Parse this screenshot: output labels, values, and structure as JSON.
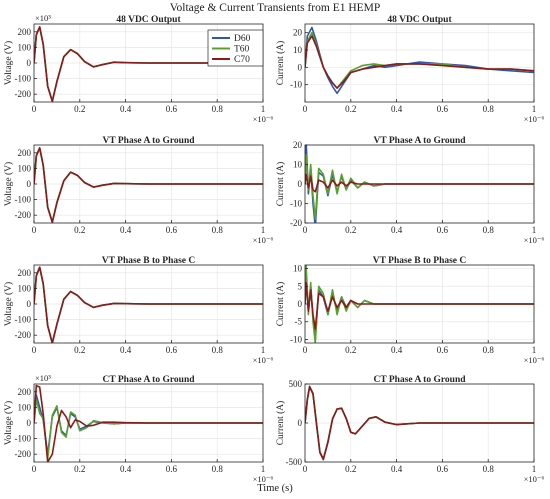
{
  "title": "Voltage & Current Transients from E1 HEMP",
  "xlabel": "Time (s)",
  "x_exponent_label": "×10⁻⁶",
  "y_exponent_label": "×10³",
  "legend": {
    "position": "top-right of 48 VDC Output voltage panel",
    "entries": [
      {
        "name": "D60",
        "color": "#2f56b0"
      },
      {
        "name": "T60",
        "color": "#5aa02c"
      },
      {
        "name": "C70",
        "color": "#8b1a1a"
      }
    ]
  },
  "chart_data": [
    {
      "type": "line",
      "title": "48 VDC Output",
      "ylabel": "Voltage (V)",
      "xlim": [
        0,
        1
      ],
      "ylim": [
        -250,
        250
      ],
      "yticks": [
        -200,
        -100,
        0,
        100,
        200
      ],
      "xticks": [
        0,
        0.2,
        0.4,
        0.6,
        0.8,
        1
      ],
      "x": [
        0,
        0.01,
        0.025,
        0.04,
        0.06,
        0.08,
        0.1,
        0.13,
        0.16,
        0.19,
        0.22,
        0.26,
        0.3,
        0.35,
        0.4,
        0.5,
        0.6,
        0.8,
        1.0
      ],
      "series": [
        {
          "name": "D60",
          "values": [
            0,
            180,
            230,
            120,
            -150,
            -245,
            -120,
            40,
            85,
            60,
            10,
            -25,
            -10,
            5,
            2,
            0,
            0,
            0,
            0
          ]
        },
        {
          "name": "T60",
          "values": [
            0,
            178,
            228,
            118,
            -148,
            -243,
            -118,
            42,
            85,
            58,
            9,
            -24,
            -9,
            5,
            2,
            0,
            0,
            0,
            0
          ]
        },
        {
          "name": "C70",
          "values": [
            0,
            182,
            232,
            120,
            -150,
            -246,
            -120,
            40,
            86,
            60,
            10,
            -25,
            -10,
            5,
            2,
            0,
            0,
            0,
            0
          ]
        }
      ]
    },
    {
      "type": "line",
      "title": "48 VDC Output",
      "ylabel": "Current (A)",
      "xlim": [
        0,
        1
      ],
      "ylim": [
        -20,
        25
      ],
      "yticks": [
        -10,
        0,
        10,
        20
      ],
      "xticks": [
        0,
        0.2,
        0.4,
        0.6,
        0.8,
        1
      ],
      "x": [
        0,
        0.01,
        0.03,
        0.05,
        0.08,
        0.1,
        0.12,
        0.14,
        0.17,
        0.2,
        0.25,
        0.3,
        0.35,
        0.4,
        0.5,
        0.6,
        0.7,
        0.8,
        0.9,
        1.0
      ],
      "series": [
        {
          "name": "D60",
          "values": [
            0,
            18,
            23,
            15,
            0,
            -6,
            -11,
            -15,
            -9,
            -3,
            -1,
            1,
            0,
            1,
            3,
            2,
            1,
            -1,
            -2,
            -3
          ]
        },
        {
          "name": "T60",
          "values": [
            0,
            15,
            20,
            13,
            0,
            -5,
            -9,
            -12,
            -7,
            -2,
            1,
            2,
            1,
            2,
            2,
            2,
            0,
            -1,
            -1,
            -2
          ]
        },
        {
          "name": "C70",
          "values": [
            0,
            14,
            18,
            12,
            0,
            -5,
            -9,
            -12,
            -8,
            -3,
            -1,
            0,
            1,
            2,
            2,
            1,
            0,
            -1,
            -1,
            -2
          ]
        }
      ]
    },
    {
      "type": "line",
      "title": "VT Phase A to Ground",
      "ylabel": "Voltage (V)",
      "xlim": [
        0,
        1
      ],
      "ylim": [
        -250,
        250
      ],
      "yticks": [
        -200,
        -100,
        0,
        100,
        200
      ],
      "xticks": [
        0,
        0.2,
        0.4,
        0.6,
        0.8,
        1
      ],
      "x": [
        0,
        0.01,
        0.025,
        0.04,
        0.06,
        0.08,
        0.1,
        0.13,
        0.16,
        0.19,
        0.22,
        0.26,
        0.3,
        0.35,
        0.4,
        0.5,
        0.6,
        0.8,
        1.0
      ],
      "series": [
        {
          "name": "D60",
          "values": [
            0,
            180,
            230,
            120,
            -150,
            -245,
            -120,
            20,
            75,
            55,
            10,
            -20,
            -8,
            4,
            2,
            0,
            0,
            0,
            0
          ]
        },
        {
          "name": "T60",
          "values": [
            0,
            178,
            228,
            118,
            -148,
            -243,
            -118,
            22,
            75,
            54,
            9,
            -20,
            -8,
            4,
            2,
            0,
            0,
            0,
            0
          ]
        },
        {
          "name": "C70",
          "values": [
            0,
            182,
            232,
            120,
            -150,
            -246,
            -120,
            20,
            76,
            55,
            10,
            -20,
            -8,
            4,
            2,
            0,
            0,
            0,
            0
          ]
        }
      ]
    },
    {
      "type": "line",
      "title": "VT Phase A to Ground",
      "ylabel": "Current (A)",
      "xlim": [
        0,
        1
      ],
      "ylim": [
        -20,
        20
      ],
      "yticks": [
        -20,
        -10,
        0,
        10,
        20
      ],
      "xticks": [
        0,
        0.2,
        0.4,
        0.6,
        0.8,
        1
      ],
      "x": [
        0,
        0.005,
        0.015,
        0.025,
        0.035,
        0.045,
        0.06,
        0.08,
        0.1,
        0.12,
        0.14,
        0.16,
        0.18,
        0.2,
        0.23,
        0.26,
        0.3,
        0.35,
        0.4,
        1.0
      ],
      "series": [
        {
          "name": "D60",
          "values": [
            0,
            22,
            -5,
            8,
            -10,
            -22,
            6,
            4,
            -6,
            5,
            -4,
            4,
            -3,
            2,
            -2,
            1,
            -1,
            0,
            0,
            0
          ]
        },
        {
          "name": "T60",
          "values": [
            0,
            15,
            -3,
            10,
            -6,
            -18,
            8,
            5,
            -5,
            7,
            -5,
            5,
            -3,
            3,
            -2,
            1,
            -1,
            0,
            0,
            0
          ]
        },
        {
          "name": "C70",
          "values": [
            0,
            5,
            -2,
            4,
            -3,
            -4,
            2,
            1,
            -2,
            2,
            -1,
            1,
            -1,
            1,
            0,
            0,
            0,
            0,
            0,
            0
          ]
        }
      ]
    },
    {
      "type": "line",
      "title": "VT Phase B to Phase C",
      "ylabel": "Voltage (V)",
      "xlim": [
        0,
        1
      ],
      "ylim": [
        -250,
        250
      ],
      "yticks": [
        -200,
        -100,
        0,
        100,
        200
      ],
      "xticks": [
        0,
        0.2,
        0.4,
        0.6,
        0.8,
        1
      ],
      "x": [
        0,
        0.01,
        0.025,
        0.04,
        0.06,
        0.08,
        0.1,
        0.13,
        0.16,
        0.19,
        0.22,
        0.26,
        0.3,
        0.35,
        0.4,
        0.5,
        0.6,
        0.8,
        1.0
      ],
      "series": [
        {
          "name": "D60",
          "values": [
            0,
            180,
            235,
            130,
            -140,
            -250,
            -130,
            30,
            80,
            55,
            10,
            -22,
            -8,
            4,
            2,
            0,
            0,
            0,
            0
          ]
        },
        {
          "name": "T60",
          "values": [
            0,
            178,
            233,
            128,
            -138,
            -248,
            -128,
            32,
            80,
            54,
            9,
            -22,
            -8,
            4,
            2,
            0,
            0,
            0,
            0
          ]
        },
        {
          "name": "C70",
          "values": [
            0,
            182,
            236,
            130,
            -140,
            -251,
            -130,
            30,
            81,
            55,
            10,
            -22,
            -8,
            4,
            2,
            0,
            0,
            0,
            0
          ]
        }
      ]
    },
    {
      "type": "line",
      "title": "VT Phase B to Phase C",
      "ylabel": "Current (A)",
      "xlim": [
        0,
        1
      ],
      "ylim": [
        -11,
        11
      ],
      "yticks": [
        -10,
        -5,
        0,
        5,
        10
      ],
      "xticks": [
        0,
        0.2,
        0.4,
        0.6,
        0.8,
        1
      ],
      "x": [
        0,
        0.005,
        0.015,
        0.025,
        0.035,
        0.045,
        0.06,
        0.08,
        0.1,
        0.12,
        0.14,
        0.16,
        0.18,
        0.2,
        0.23,
        0.26,
        0.3,
        0.35,
        0.4,
        1.0
      ],
      "series": [
        {
          "name": "D60",
          "values": [
            0,
            9,
            -2,
            5,
            -4,
            -10,
            4,
            2,
            -3,
            3,
            -2,
            2,
            -1,
            1,
            -1,
            1,
            0,
            0,
            0,
            0
          ]
        },
        {
          "name": "T60",
          "values": [
            0,
            11,
            -3,
            6,
            -5,
            -11,
            5,
            3,
            -3,
            4,
            -3,
            2,
            -2,
            1,
            -1,
            1,
            0,
            0,
            0,
            0
          ]
        },
        {
          "name": "C70",
          "values": [
            0,
            6,
            -2,
            4,
            -3,
            -7,
            3,
            2,
            -2,
            2,
            -1,
            1,
            -1,
            1,
            0,
            0,
            0,
            0,
            0,
            0
          ]
        }
      ]
    },
    {
      "type": "line",
      "title": "CT Phase A to Ground",
      "ylabel": "Voltage (V)",
      "xlim": [
        0,
        1
      ],
      "ylim": [
        -250,
        250
      ],
      "yticks": [
        -200,
        -100,
        0,
        100,
        200
      ],
      "xticks": [
        0,
        0.2,
        0.4,
        0.6,
        0.8,
        1
      ],
      "x": [
        0,
        0.01,
        0.025,
        0.04,
        0.06,
        0.08,
        0.1,
        0.12,
        0.14,
        0.16,
        0.18,
        0.2,
        0.23,
        0.26,
        0.3,
        0.35,
        0.4,
        0.5,
        0.7,
        1.0
      ],
      "series": [
        {
          "name": "D60",
          "values": [
            0,
            180,
            100,
            20,
            -200,
            40,
            100,
            -50,
            -80,
            60,
            40,
            -40,
            -20,
            10,
            0,
            -5,
            0,
            0,
            0,
            0
          ]
        },
        {
          "name": "T60",
          "values": [
            0,
            150,
            60,
            30,
            -230,
            50,
            110,
            -60,
            -90,
            70,
            50,
            -50,
            -30,
            15,
            2,
            -5,
            0,
            0,
            0,
            0
          ]
        },
        {
          "name": "C70",
          "values": [
            0,
            240,
            230,
            60,
            -250,
            -200,
            -20,
            80,
            40,
            -30,
            20,
            10,
            -20,
            -15,
            5,
            5,
            2,
            0,
            0,
            0
          ]
        }
      ]
    },
    {
      "type": "line",
      "title": "CT Phase A to Ground",
      "ylabel": "Current (A)",
      "xlim": [
        0,
        1
      ],
      "ylim": [
        -500,
        500
      ],
      "yticks": [
        -500,
        0,
        500
      ],
      "xticks": [
        0,
        0.2,
        0.4,
        0.6,
        0.8,
        1
      ],
      "x": [
        0,
        0.01,
        0.02,
        0.035,
        0.05,
        0.065,
        0.08,
        0.1,
        0.12,
        0.14,
        0.16,
        0.18,
        0.2,
        0.22,
        0.25,
        0.28,
        0.31,
        0.35,
        0.4,
        0.5,
        1.0
      ],
      "series": [
        {
          "name": "D60",
          "values": [
            0,
            300,
            470,
            380,
            0,
            -380,
            -470,
            -250,
            50,
            180,
            190,
            60,
            -120,
            -140,
            -40,
            60,
            80,
            10,
            -20,
            0,
            0
          ]
        },
        {
          "name": "T60",
          "values": [
            0,
            290,
            460,
            370,
            0,
            -370,
            -460,
            -240,
            55,
            180,
            190,
            55,
            -120,
            -140,
            -40,
            60,
            80,
            10,
            -20,
            0,
            0
          ]
        },
        {
          "name": "C70",
          "values": [
            0,
            300,
            465,
            375,
            0,
            -375,
            -465,
            -245,
            50,
            178,
            188,
            58,
            -118,
            -138,
            -40,
            58,
            78,
            10,
            -20,
            0,
            0
          ]
        }
      ]
    }
  ]
}
